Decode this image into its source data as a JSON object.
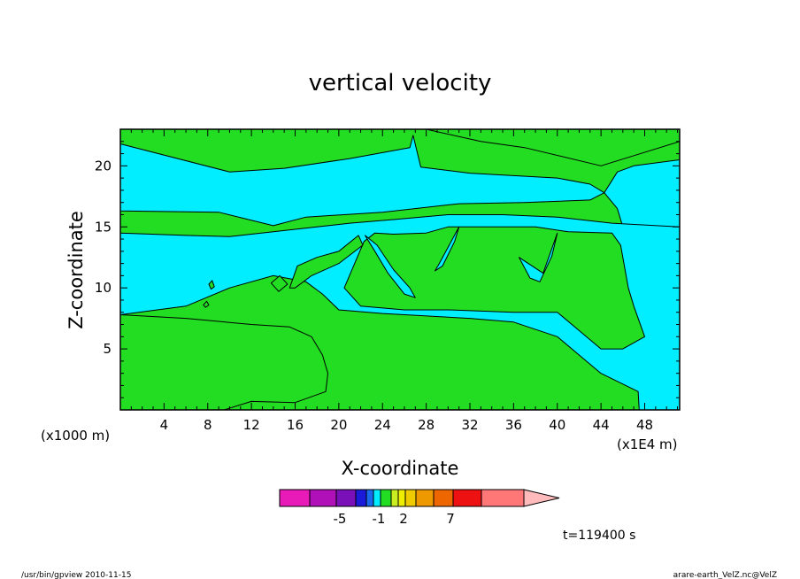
{
  "chart_data": {
    "type": "heatmap",
    "title": "vertical velocity",
    "xlabel": "X-coordinate",
    "ylabel": "Z-coordinate",
    "x_unit_left": "(x1000 m)",
    "x_unit_right": "(x1E4 m)",
    "x_ticks": [
      4,
      8,
      12,
      16,
      20,
      24,
      28,
      32,
      36,
      40,
      44,
      48
    ],
    "y_ticks": [
      5,
      10,
      15,
      20
    ],
    "xlim": [
      0,
      51.2
    ],
    "ylim": [
      0,
      23
    ],
    "fill_colors": {
      "negative_weak": "#00eeff",
      "positive_weak": "#22dd22"
    },
    "regions": [
      {
        "level": "positive_weak",
        "points": [
          [
            0,
            23
          ],
          [
            28,
            23
          ],
          [
            33,
            22
          ],
          [
            37,
            21.5
          ],
          [
            44,
            20
          ],
          [
            51.2,
            22
          ],
          [
            51.2,
            23
          ]
        ]
      },
      {
        "level": "negative_weak",
        "points": [
          [
            0,
            21.8
          ],
          [
            10,
            19.5
          ],
          [
            15,
            19.8
          ],
          [
            21,
            20.6
          ],
          [
            26.5,
            21.5
          ],
          [
            26.8,
            22.5
          ],
          [
            27.5,
            19.9
          ],
          [
            32,
            19.4
          ],
          [
            36,
            19.2
          ],
          [
            40,
            19
          ],
          [
            43,
            18.5
          ],
          [
            44.3,
            17.8
          ],
          [
            43,
            17.2
          ],
          [
            37,
            17
          ],
          [
            31,
            16.9
          ],
          [
            24,
            16.2
          ],
          [
            17,
            15.8
          ],
          [
            14,
            15.1
          ],
          [
            9,
            16.2
          ],
          [
            0,
            16.3
          ]
        ]
      },
      {
        "level": "negative_weak",
        "points": [
          [
            44.3,
            17.8
          ],
          [
            45.5,
            19.5
          ],
          [
            47,
            20
          ],
          [
            51.2,
            20.5
          ],
          [
            51.2,
            15
          ],
          [
            49,
            14.8
          ],
          [
            46,
            15
          ],
          [
            45.5,
            16.5
          ]
        ]
      },
      {
        "level": "negative_weak",
        "points": [
          [
            0,
            14.5
          ],
          [
            6,
            14.3
          ],
          [
            10,
            14.2
          ],
          [
            15,
            14.7
          ],
          [
            21,
            15.3
          ],
          [
            25,
            15.6
          ],
          [
            30,
            16
          ],
          [
            35,
            16
          ],
          [
            40,
            15.8
          ],
          [
            45,
            15.3
          ],
          [
            51.2,
            15
          ],
          [
            51.2,
            0
          ],
          [
            47.5,
            0
          ],
          [
            47.4,
            1.5
          ],
          [
            44,
            3
          ],
          [
            42,
            4.5
          ],
          [
            40,
            6
          ],
          [
            36,
            7.2
          ],
          [
            32,
            7.5
          ],
          [
            24,
            7.9
          ],
          [
            20,
            8.2
          ],
          [
            18.5,
            9.5
          ],
          [
            17,
            10.5
          ],
          [
            14,
            11
          ],
          [
            10,
            10
          ],
          [
            6,
            8.5
          ],
          [
            0,
            7.8
          ]
        ]
      },
      {
        "level": "positive_weak",
        "points": [
          [
            20.5,
            10
          ],
          [
            22.3,
            13.8
          ],
          [
            23.3,
            14.5
          ],
          [
            25,
            14.4
          ],
          [
            28,
            14.5
          ],
          [
            30,
            15
          ],
          [
            34,
            15
          ],
          [
            38,
            15
          ],
          [
            41,
            14.6
          ],
          [
            45,
            14.5
          ],
          [
            45.8,
            13.5
          ],
          [
            46.5,
            10
          ],
          [
            47,
            8.5
          ],
          [
            48,
            6
          ],
          [
            46,
            5
          ],
          [
            44,
            5
          ],
          [
            42,
            6.5
          ],
          [
            40,
            8
          ],
          [
            36,
            8
          ],
          [
            30,
            8.2
          ],
          [
            26,
            8.2
          ],
          [
            22,
            8.5
          ],
          [
            21,
            9.5
          ]
        ]
      },
      {
        "level": "negative_weak",
        "points": [
          [
            22.4,
            14.3
          ],
          [
            23.3,
            13
          ],
          [
            24.5,
            11.2
          ],
          [
            26,
            9.5
          ],
          [
            27,
            9.2
          ],
          [
            26.5,
            10
          ],
          [
            25,
            11.5
          ],
          [
            23.5,
            13.5
          ]
        ]
      },
      {
        "level": "negative_weak",
        "points": [
          [
            31,
            15
          ],
          [
            29.2,
            12
          ],
          [
            28.8,
            11.4
          ],
          [
            29.5,
            11.8
          ],
          [
            30.6,
            13.8
          ]
        ]
      },
      {
        "level": "negative_weak",
        "points": [
          [
            36.5,
            12.5
          ],
          [
            37.5,
            10.8
          ],
          [
            38.4,
            10.5
          ],
          [
            39.5,
            12.6
          ],
          [
            40,
            14.5
          ],
          [
            38.7,
            11.2
          ]
        ]
      },
      {
        "level": "positive_weak",
        "points": [
          [
            15.5,
            10
          ],
          [
            16.2,
            11.8
          ],
          [
            18,
            12.5
          ],
          [
            20,
            13
          ],
          [
            21.8,
            14.3
          ],
          [
            22.2,
            13.5
          ],
          [
            20,
            12
          ],
          [
            17.5,
            11
          ],
          [
            16,
            10
          ]
        ]
      },
      {
        "level": "positive_weak",
        "points": [
          [
            13.8,
            10.4
          ],
          [
            14.6,
            11
          ],
          [
            15.3,
            10.3
          ],
          [
            14.5,
            9.7
          ]
        ]
      },
      {
        "level": "positive_weak",
        "points": [
          [
            8.1,
            10.3
          ],
          [
            8.4,
            10.6
          ],
          [
            8.6,
            10.1
          ],
          [
            8.3,
            9.9
          ]
        ]
      },
      {
        "level": "positive_weak",
        "points": [
          [
            7.6,
            8.6
          ],
          [
            7.9,
            8.9
          ],
          [
            8.1,
            8.6
          ],
          [
            7.8,
            8.4
          ]
        ]
      },
      {
        "level": "positive_weak",
        "points": [
          [
            0,
            7.8
          ],
          [
            6,
            7.5
          ],
          [
            12,
            7
          ],
          [
            15.5,
            6.8
          ],
          [
            17.5,
            6
          ],
          [
            18.5,
            4.5
          ],
          [
            19,
            3
          ],
          [
            18.8,
            1.5
          ],
          [
            16,
            0.6
          ],
          [
            12,
            0.7
          ],
          [
            9.5,
            0
          ],
          [
            0,
            0
          ]
        ]
      }
    ]
  },
  "colorbar": {
    "colors": [
      "#e81ab8",
      "#b010b8",
      "#7a10b8",
      "#1a1ad8",
      "#1a6aee",
      "#00eeff",
      "#22dd22",
      "#c8ee22",
      "#eeee00",
      "#eecc00",
      "#ee9900",
      "#ee6600",
      "#ee1111",
      "#ff7777",
      "#ffbbbb"
    ],
    "labels": [
      "-5",
      "-1",
      "2",
      "7"
    ]
  },
  "time_label": "t=119400 s",
  "footer_left": "/usr/bin/gpview  2010-11-15",
  "footer_right": "arare-earth_VelZ.nc@VelZ"
}
